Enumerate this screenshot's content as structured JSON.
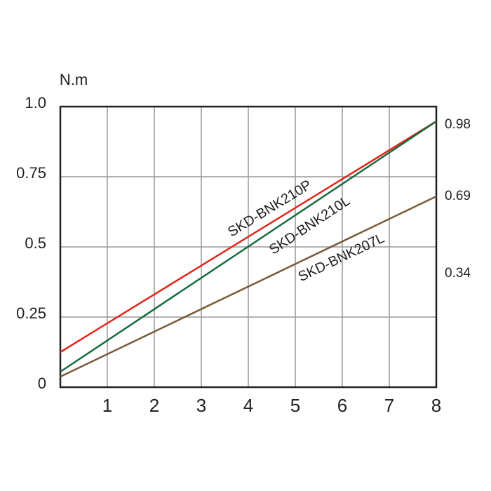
{
  "chart_data": {
    "type": "line",
    "y_axis_label": "N.m",
    "x": [
      0,
      8
    ],
    "series": [
      {
        "name": "SKD-BNK210P",
        "color": "#e0261b",
        "values": [
          0.125,
          0.9475
        ]
      },
      {
        "name": "SKD-BNK210L",
        "color": "#1a6b3c",
        "values": [
          0.055,
          0.9475
        ]
      },
      {
        "name": "SKD-BNK207L",
        "color": "#7a5a3a",
        "values": [
          0.0375,
          0.68
        ]
      }
    ],
    "xlim": [
      0,
      8
    ],
    "xticks": [
      1,
      2,
      3,
      4,
      5,
      6,
      7,
      8
    ],
    "ylim": [
      0,
      1
    ],
    "yticks": [
      0,
      {
        "value": 0.25,
        "label": "0.25"
      },
      {
        "value": 0.5,
        "label": "0.5"
      },
      {
        "value": 0.75,
        "label": "0.75"
      },
      {
        "value": 1,
        "label": "1.0"
      }
    ],
    "right_annotations": [
      "0.98",
      "0.69",
      "0.34"
    ],
    "grid": true
  }
}
